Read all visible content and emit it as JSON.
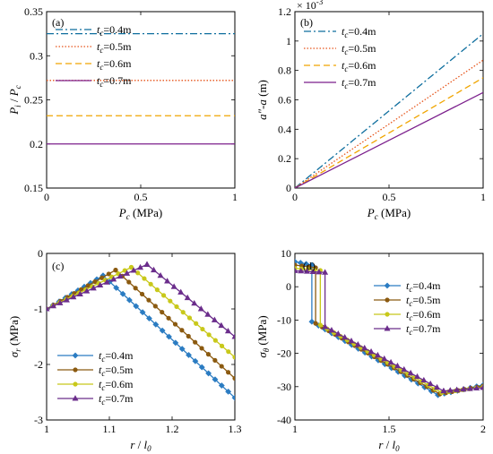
{
  "chart_data": [
    {
      "id": "a",
      "panel_label": "(a)",
      "type": "line",
      "xlabel": {
        "main": "P",
        "sub": "c",
        "unit": " (MPa)"
      },
      "ylabel": {
        "main": "P",
        "sub": "i",
        "sep": " / ",
        "main2": "P",
        "sub2": "c"
      },
      "xlim": [
        0,
        1
      ],
      "ylim": [
        0.15,
        0.35
      ],
      "xticks": [
        0,
        0.5,
        1
      ],
      "xtick_labels": [
        "0",
        "0.5",
        "1"
      ],
      "yticks": [
        0.15,
        0.2,
        0.25,
        0.3,
        0.35
      ],
      "ytick_labels": [
        "0.15",
        "0.2",
        "0.25",
        "0.3",
        "0.35"
      ],
      "legend": "upper-left",
      "series": [
        {
          "name": "tc=0.4m",
          "label_main": "t",
          "label_sub": "c",
          "label_val": "=0.4m",
          "color": "#0e6e9e",
          "dash": "8,3,2,3",
          "x": [
            0,
            1
          ],
          "y": [
            0.325,
            0.325
          ]
        },
        {
          "name": "tc=0.5m",
          "label_main": "t",
          "label_sub": "c",
          "label_val": "=0.5m",
          "color": "#e6551b",
          "dash": "1.5,2",
          "x": [
            0,
            1
          ],
          "y": [
            0.272,
            0.272
          ]
        },
        {
          "name": "tc=0.6m",
          "label_main": "t",
          "label_sub": "c",
          "label_val": "=0.6m",
          "color": "#f0a500",
          "dash": "7,4",
          "x": [
            0,
            1
          ],
          "y": [
            0.232,
            0.232
          ]
        },
        {
          "name": "tc=0.7m",
          "label_main": "t",
          "label_sub": "c",
          "label_val": "=0.7m",
          "color": "#7b1f8c",
          "dash": "",
          "x": [
            0,
            1
          ],
          "y": [
            0.2,
            0.2
          ]
        }
      ]
    },
    {
      "id": "b",
      "panel_label": "(b)",
      "type": "line",
      "xlabel": {
        "main": "P",
        "sub": "c",
        "unit": " (MPa)"
      },
      "ylabel": {
        "main": "a″-a",
        "unit": " (m)"
      },
      "scale_note": "× 10",
      "scale_exp": "-3",
      "xlim": [
        0,
        1
      ],
      "ylim": [
        0,
        0.0012
      ],
      "xticks": [
        0,
        0.5,
        1
      ],
      "xtick_labels": [
        "0",
        "0.5",
        "1"
      ],
      "yticks": [
        0,
        0.0002,
        0.0004,
        0.0006,
        0.0008,
        0.001,
        0.0012
      ],
      "ytick_labels": [
        "0",
        "0.2",
        "0.4",
        "0.6",
        "0.8",
        "1",
        "1.2"
      ],
      "legend": "upper-left",
      "series": [
        {
          "name": "tc=0.4m",
          "label_main": "t",
          "label_sub": "c",
          "label_val": "=0.4m",
          "color": "#0e6e9e",
          "dash": "8,3,2,3",
          "x": [
            0,
            1
          ],
          "y": [
            0,
            0.00105
          ]
        },
        {
          "name": "tc=0.5m",
          "label_main": "t",
          "label_sub": "c",
          "label_val": "=0.5m",
          "color": "#e6551b",
          "dash": "1.5,2",
          "x": [
            0,
            1
          ],
          "y": [
            0,
            0.00087
          ]
        },
        {
          "name": "tc=0.6m",
          "label_main": "t",
          "label_sub": "c",
          "label_val": "=0.6m",
          "color": "#f0a500",
          "dash": "7,4",
          "x": [
            0,
            1
          ],
          "y": [
            0,
            0.00075
          ]
        },
        {
          "name": "tc=0.7m",
          "label_main": "t",
          "label_sub": "c",
          "label_val": "=0.7m",
          "color": "#7b1f8c",
          "dash": "",
          "x": [
            0,
            1
          ],
          "y": [
            0,
            0.00065
          ]
        }
      ]
    },
    {
      "id": "c",
      "panel_label": "(c)",
      "type": "line",
      "xlabel": {
        "main": "r",
        "sep": " / ",
        "main2": "l",
        "sub2": "0"
      },
      "ylabel": {
        "main": "σ",
        "sub": "r",
        "unit": " (MPa)"
      },
      "xlim": [
        1,
        1.3
      ],
      "ylim": [
        -3,
        0
      ],
      "xticks": [
        1,
        1.1,
        1.2,
        1.3
      ],
      "xtick_labels": [
        "1",
        "1.1",
        "1.2",
        "1.3"
      ],
      "yticks": [
        -3,
        -2,
        -1,
        0
      ],
      "ytick_labels": [
        "-3",
        "-2",
        "-1",
        "0"
      ],
      "legend": "lower-left",
      "marker_step": 0.0105,
      "series": [
        {
          "name": "tc=0.4m",
          "label_main": "t",
          "label_sub": "c",
          "label_val": "=0.4m",
          "color": "#2b7cc2",
          "marker": "diamond",
          "x": [
            1.0,
            1.09,
            1.3
          ],
          "y": [
            -1.0,
            -0.4,
            -2.6
          ]
        },
        {
          "name": "tc=0.5m",
          "label_main": "t",
          "label_sub": "c",
          "label_val": "=0.5m",
          "color": "#8b5a10",
          "marker": "circle",
          "x": [
            1.0,
            1.11,
            1.3
          ],
          "y": [
            -1.0,
            -0.3,
            -2.25
          ]
        },
        {
          "name": "tc=0.6m",
          "label_main": "t",
          "label_sub": "c",
          "label_val": "=0.6m",
          "color": "#c8c81a",
          "marker": "circle",
          "x": [
            1.0,
            1.135,
            1.3
          ],
          "y": [
            -1.0,
            -0.25,
            -1.87
          ]
        },
        {
          "name": "tc=0.7m",
          "label_main": "t",
          "label_sub": "c",
          "label_val": "=0.7m",
          "color": "#6b2d8b",
          "marker": "triangle",
          "x": [
            1.0,
            1.16,
            1.3
          ],
          "y": [
            -1.0,
            -0.2,
            -1.5
          ]
        }
      ]
    },
    {
      "id": "d",
      "panel_label": "(d)",
      "type": "line",
      "xlabel": {
        "main": "r",
        "sep": " / ",
        "main2": "l",
        "sub2": "0"
      },
      "ylabel": {
        "main": "σ",
        "sub": "θ",
        "unit": " (MPa)"
      },
      "xlim": [
        1,
        2
      ],
      "ylim": [
        -40,
        10
      ],
      "xticks": [
        1,
        1.5,
        2
      ],
      "xtick_labels": [
        "1",
        "1.5",
        "2"
      ],
      "yticks": [
        -40,
        -30,
        -20,
        -10,
        0,
        10
      ],
      "ytick_labels": [
        "-40",
        "-30",
        "-20",
        "-10",
        "0",
        "10"
      ],
      "legend": "upper-right",
      "marker_step": 0.035,
      "series": [
        {
          "name": "tc=0.4m",
          "label_main": "t",
          "label_sub": "c",
          "label_val": "=0.4m",
          "color": "#2b7cc2",
          "marker": "diamond",
          "x": [
            1.0,
            1.09,
            1.09,
            1.76,
            2.0
          ],
          "y": [
            7.5,
            6.5,
            -10.5,
            -32.5,
            -29.5
          ]
        },
        {
          "name": "tc=0.5m",
          "label_main": "t",
          "label_sub": "c",
          "label_val": "=0.5m",
          "color": "#8b5a10",
          "marker": "circle",
          "x": [
            1.0,
            1.11,
            1.11,
            1.77,
            2.0
          ],
          "y": [
            6.5,
            5.7,
            -11.0,
            -32.2,
            -29.8
          ]
        },
        {
          "name": "tc=0.6m",
          "label_main": "t",
          "label_sub": "c",
          "label_val": "=0.6m",
          "color": "#c8c81a",
          "marker": "circle",
          "x": [
            1.0,
            1.135,
            1.135,
            1.78,
            2.0
          ],
          "y": [
            5.5,
            4.9,
            -11.5,
            -31.8,
            -30.1
          ]
        },
        {
          "name": "tc=0.7m",
          "label_main": "t",
          "label_sub": "c",
          "label_val": "=0.7m",
          "color": "#6b2d8b",
          "marker": "triangle",
          "x": [
            1.0,
            1.16,
            1.16,
            1.79,
            2.0
          ],
          "y": [
            4.8,
            4.3,
            -12.0,
            -31.3,
            -30.3
          ]
        }
      ]
    }
  ]
}
